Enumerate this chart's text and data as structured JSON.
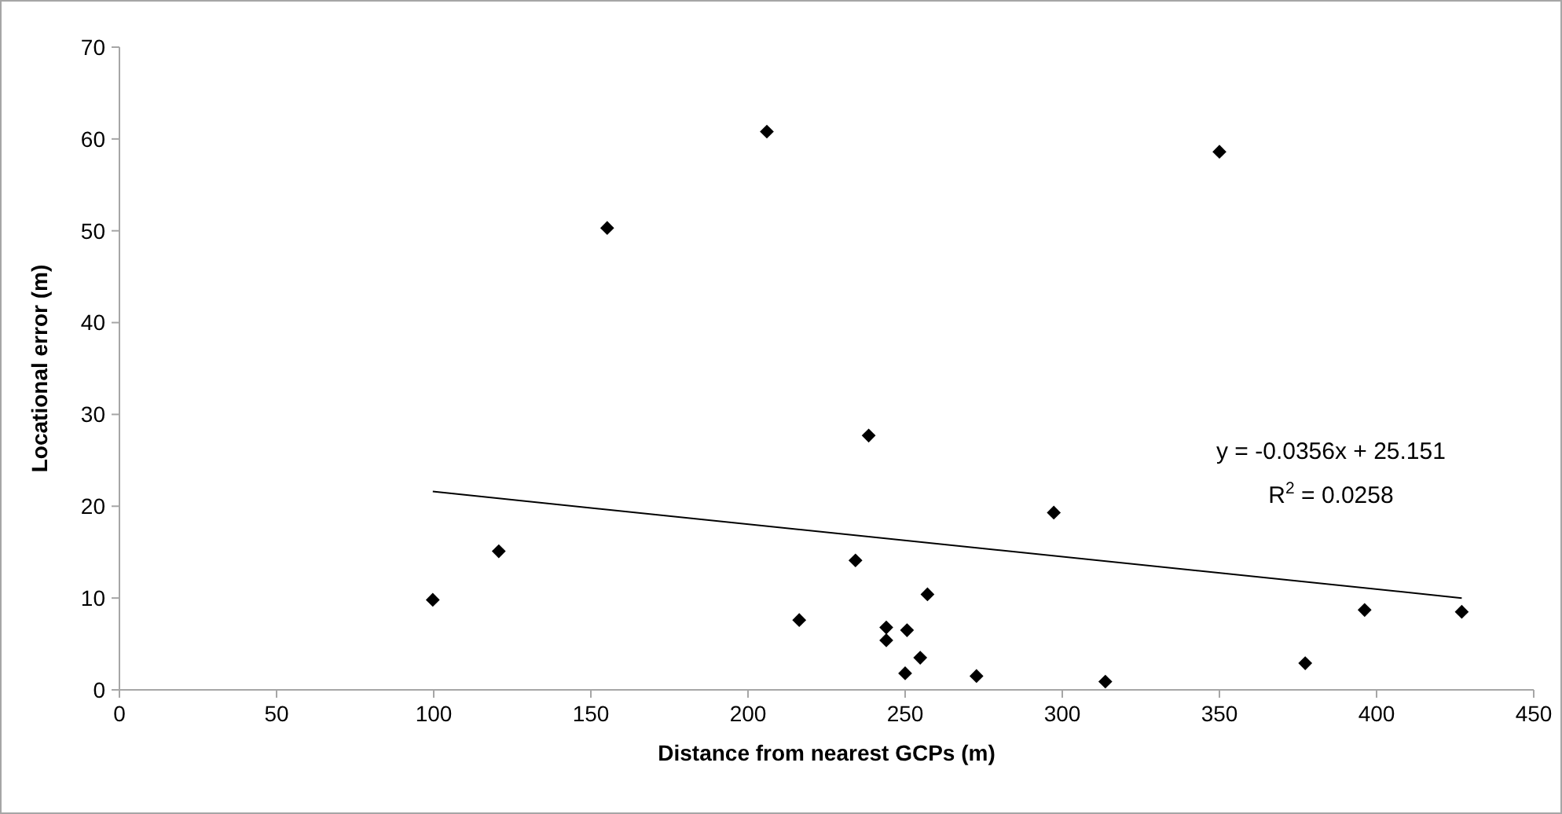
{
  "chart_data": {
    "type": "scatter",
    "xlabel": "Distance from nearest GCPs (m)",
    "ylabel": "Locational error (m)",
    "xlim": [
      0,
      450
    ],
    "xticks": [
      0,
      50,
      100,
      150,
      200,
      250,
      300,
      350,
      400,
      450
    ],
    "ylim": [
      0,
      70
    ],
    "yticks": [
      0,
      10,
      20,
      30,
      40,
      50,
      60,
      70
    ],
    "grid": false,
    "marker": "diamond",
    "series": [
      {
        "color": "#000000",
        "x": [
          99.7,
          120.7,
          155.2,
          206,
          216.3,
          234.2,
          238.4,
          244,
          244,
          250,
          250.6,
          254.8,
          257.1,
          272.7,
          297.3,
          313.7,
          350,
          377.3,
          396.2,
          427.1
        ],
        "values": [
          9.8,
          15.1,
          50.3,
          60.8,
          7.6,
          14.1,
          27.7,
          6.8,
          5.4,
          1.8,
          6.5,
          3.5,
          10.4,
          1.5,
          19.3,
          0.9,
          58.6,
          2.9,
          8.7,
          8.5
        ]
      },
      {
        "type": "line",
        "color": "#000000",
        "marker": "none",
        "x": [
          99.7,
          427.1
        ],
        "values": [
          21.6,
          10
        ]
      }
    ],
    "annotations": [
      "y = -0.0356x + 25.151",
      "R$^{2}$ = 0.0258"
    ]
  }
}
